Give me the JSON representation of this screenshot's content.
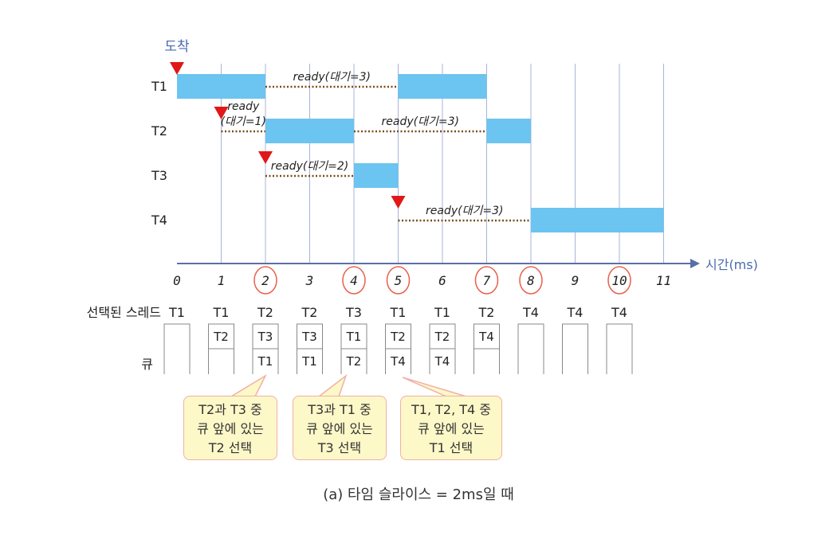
{
  "arrival_label": "도착",
  "axis_label": "시간(ms)",
  "threads": [
    "T1",
    "T2",
    "T3",
    "T4"
  ],
  "ticks": [
    "0",
    "1",
    "2",
    "3",
    "4",
    "5",
    "6",
    "7",
    "8",
    "9",
    "10",
    "11"
  ],
  "circled_ticks": [
    2,
    4,
    5,
    7,
    8,
    10
  ],
  "arrivals": [
    {
      "thread": "T1",
      "t": 0
    },
    {
      "thread": "T2",
      "t": 1
    },
    {
      "thread": "T3",
      "t": 2
    },
    {
      "thread": "T4",
      "t": 5
    }
  ],
  "running": [
    {
      "thread": "T1",
      "start": 0,
      "end": 2
    },
    {
      "thread": "T2",
      "start": 2,
      "end": 4
    },
    {
      "thread": "T3",
      "start": 4,
      "end": 5
    },
    {
      "thread": "T1",
      "start": 5,
      "end": 7
    },
    {
      "thread": "T2",
      "start": 7,
      "end": 8
    },
    {
      "thread": "T4",
      "start": 8,
      "end": 11
    }
  ],
  "waiting": [
    {
      "thread": "T1",
      "start": 2,
      "end": 5,
      "label": "ready(대기=3)"
    },
    {
      "thread": "T2",
      "start": 1,
      "end": 2,
      "label": "ready\n(대기=1)"
    },
    {
      "thread": "T2",
      "start": 4,
      "end": 7,
      "label": "ready(대기=3)"
    },
    {
      "thread": "T3",
      "start": 2,
      "end": 4,
      "label": "ready(대기=2)"
    },
    {
      "thread": "T4",
      "start": 5,
      "end": 8,
      "label": "ready(대기=3)"
    }
  ],
  "selected_label": "선택된 스레드",
  "queue_label": "큐",
  "selected": [
    "T1",
    "T1",
    "T2",
    "T2",
    "T3",
    "T1",
    "T1",
    "T2",
    "T4",
    "T4",
    "T4"
  ],
  "queue": [
    [],
    [
      "T2"
    ],
    [
      "T3",
      "T1"
    ],
    [
      "T3",
      "T1"
    ],
    [
      "T1",
      "T2"
    ],
    [
      "T2",
      "T4"
    ],
    [
      "T2",
      "T4"
    ],
    [
      "T4"
    ],
    [],
    [],
    []
  ],
  "callouts": [
    {
      "lines": [
        "T2과 T3 중",
        "큐 앞에 있는",
        "T2 선택"
      ]
    },
    {
      "lines": [
        "T3과 T1 중",
        "큐 앞에 있는",
        "T3 선택"
      ]
    },
    {
      "lines": [
        "T1, T2, T4 중",
        "큐 앞에 있는",
        "T1 선택"
      ]
    }
  ],
  "caption": "(a) 타임 슬라이스 = 2ms일 때",
  "colors": {
    "bar": "#6cc4f0",
    "arrow": "#e01818",
    "wait": "#7a4a1a",
    "grid": "#a8b4d8",
    "axis": "#5a6ea8",
    "circle": "#e8604a"
  }
}
